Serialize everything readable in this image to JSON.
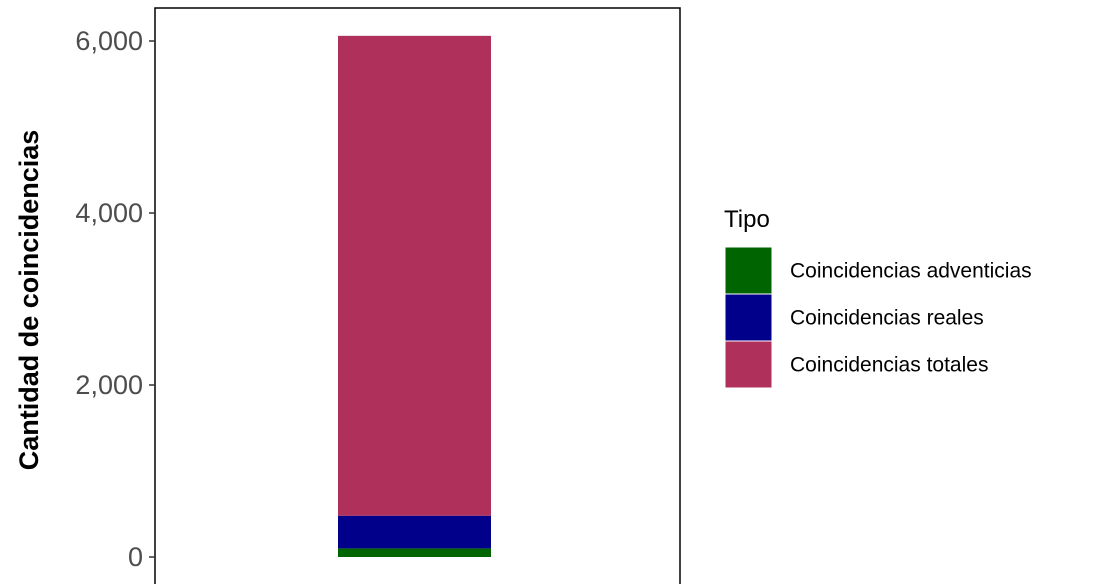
{
  "chart_data": {
    "type": "bar",
    "stacked": true,
    "categories": [
      ""
    ],
    "series": [
      {
        "name": "Coincidencias adventicias",
        "values": [
          100
        ],
        "color": "#006400"
      },
      {
        "name": "Coincidencias reales",
        "values": [
          380
        ],
        "color": "#00008B"
      },
      {
        "name": "Coincidencias totales",
        "values": [
          5580
        ],
        "color": "#B0305C"
      }
    ],
    "ylabel": "Cantidad de coincidencias",
    "xlabel": "",
    "ylim": [
      0,
      6050
    ],
    "yticks": [
      0,
      2000,
      4000,
      6000
    ],
    "ytick_labels": [
      "0",
      "2,000",
      "4,000",
      "6,000"
    ],
    "legend": {
      "title": "Tipo",
      "placement": "right"
    },
    "grid": false
  }
}
